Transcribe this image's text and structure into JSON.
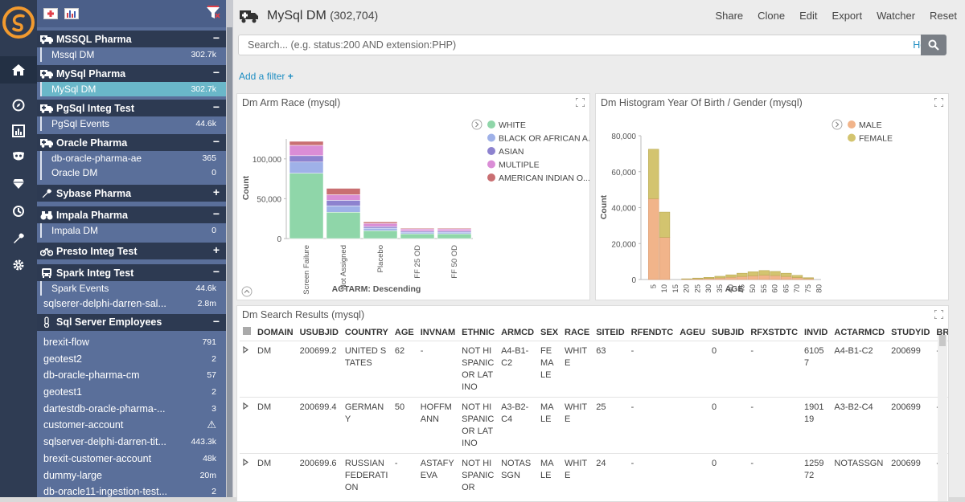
{
  "sidebar": {
    "groups": [
      {
        "label": "MSSQL Pharma",
        "toggle": "−",
        "icon": "truck-icon",
        "items": [
          {
            "label": "Mssql DM",
            "count": "302.7k"
          }
        ]
      },
      {
        "label": "MySql Pharma",
        "toggle": "−",
        "icon": "truck-icon",
        "items": [
          {
            "label": "MySql DM",
            "count": "302.7k",
            "selected": true
          }
        ]
      },
      {
        "label": "PgSql Integ Test",
        "toggle": "−",
        "icon": "truck-icon",
        "items": [
          {
            "label": "PgSql Events",
            "count": "44.6k"
          }
        ]
      },
      {
        "label": "Oracle Pharma",
        "toggle": "−",
        "icon": "truck-icon",
        "items": [
          {
            "label": "db-oracle-pharma-ae",
            "count": "365"
          },
          {
            "label": "Oracle DM",
            "count": "0"
          }
        ]
      },
      {
        "label": "Sybase Pharma",
        "toggle": "+",
        "icon": "wrench-icon",
        "items": []
      },
      {
        "label": "Impala Pharma",
        "toggle": "−",
        "icon": "binoculars-icon",
        "items": [
          {
            "label": "Impala DM",
            "count": "0"
          }
        ]
      },
      {
        "label": "Presto Integ Test",
        "toggle": "+",
        "icon": "bicycle-icon",
        "items": []
      },
      {
        "label": "Spark Integ Test",
        "toggle": "−",
        "icon": "bus-icon",
        "items": [
          {
            "label": "Spark Events",
            "count": "44.6k"
          }
        ]
      }
    ],
    "standalone": [
      {
        "label": "sqlserer-delphi-darren-sal...",
        "count": "2.8m"
      }
    ],
    "last_group": {
      "label": "Sql Server Employees",
      "toggle": "−",
      "icon": "thermometer-icon",
      "items": [
        {
          "label": "brexit-flow",
          "count": "791"
        },
        {
          "label": "geotest2",
          "count": "2"
        },
        {
          "label": "db-oracle-pharma-cm",
          "count": "57"
        },
        {
          "label": "geotest1",
          "count": "2"
        },
        {
          "label": "dartestdb-oracle-pharma-...",
          "count": "3"
        },
        {
          "label": "customer-account",
          "count": "⚠"
        },
        {
          "label": "sqlserver-delphi-darren-tit...",
          "count": "443.3k"
        },
        {
          "label": "brexit-customer-account",
          "count": "48k"
        },
        {
          "label": "dummy-large",
          "count": "20m"
        },
        {
          "label": "db-oracle11-ingestion-test...",
          "count": "2"
        }
      ]
    }
  },
  "header": {
    "title": "MySql DM",
    "count": "(302,704)",
    "menu": [
      "Share",
      "Clone",
      "Edit",
      "Export",
      "Watcher",
      "Reset"
    ]
  },
  "search": {
    "placeholder": "Search... (e.g. status:200 AND extension:PHP)",
    "help": "Help"
  },
  "add_filter": "Add a filter",
  "chart_data": [
    {
      "type": "bar",
      "title": "Dm Arm Race (mysql)",
      "xlabel": "ACTARM: Descending",
      "ylabel": "Count",
      "ylim": [
        0,
        125000
      ],
      "yticks": [
        "100,000",
        "50,000",
        "0"
      ],
      "categories": [
        "Screen Failure",
        "Not Assigned",
        "Placebo",
        "FF 25 OD",
        "FF 50 OD"
      ],
      "stacked": true,
      "series": [
        {
          "name": "WHITE",
          "color": "#8fd6a9",
          "values": [
            82000,
            33000,
            10000,
            6000,
            6000
          ]
        },
        {
          "name": "BLACK OR AFRICAN A...",
          "color": "#9fb1e8",
          "values": [
            14000,
            8000,
            3000,
            2000,
            2000
          ]
        },
        {
          "name": "ASIAN",
          "color": "#8d82cf",
          "values": [
            8000,
            7000,
            2000,
            1500,
            1500
          ]
        },
        {
          "name": "MULTIPLE",
          "color": "#da8dd6",
          "values": [
            13000,
            7000,
            4000,
            2500,
            2500
          ]
        },
        {
          "name": "AMERICAN INDIAN O...",
          "color": "#c96f72",
          "values": [
            5000,
            8000,
            2000,
            1000,
            1000
          ]
        }
      ]
    },
    {
      "type": "bar",
      "title": "Dm Histogram Year Of Birth / Gender (mysql)",
      "xlabel": "AGE",
      "ylabel": "Count",
      "ylim": [
        0,
        80000
      ],
      "yticks": [
        "80,000",
        "60,000",
        "40,000",
        "20,000",
        "0"
      ],
      "xticks": [
        "5",
        "10",
        "15",
        "20",
        "25",
        "30",
        "35",
        "40",
        "45",
        "50",
        "55",
        "60",
        "65",
        "70",
        "75",
        "80"
      ],
      "stacked": true,
      "x": [
        5,
        10,
        15,
        20,
        25,
        30,
        35,
        40,
        45,
        50,
        55,
        60,
        65,
        70,
        75
      ],
      "series": [
        {
          "name": "MALE",
          "color": "#f1b48a",
          "values": [
            45000,
            23500,
            0,
            200,
            400,
            600,
            900,
            1300,
            1700,
            2100,
            2400,
            2200,
            1700,
            1100,
            500
          ]
        },
        {
          "name": "FEMALE",
          "color": "#d3c46f",
          "values": [
            27500,
            14000,
            0,
            200,
            400,
            600,
            900,
            1300,
            1800,
            2200,
            2600,
            2300,
            1800,
            1200,
            500
          ]
        }
      ]
    }
  ],
  "results": {
    "title": "Dm Search Results (mysql)",
    "columns": [
      "DOMAIN",
      "USUBJID",
      "COUNTRY",
      "AGE",
      "INVNAM",
      "ETHNIC",
      "ARMCD",
      "SEX",
      "RACE",
      "SITEID",
      "RFENDTC",
      "AGEU",
      "SUBJID",
      "RFXSTDTC",
      "INVID",
      "ACTARMCD",
      "STUDYID",
      "BRTHDTC"
    ],
    "rows": [
      [
        "DM",
        "200699.2",
        "UNITED STATES",
        "62",
        "-",
        "NOT HISPANIC OR LATINO",
        "A4-B1-C2",
        "FEMALE",
        "WHITE",
        "63",
        "-",
        "",
        "0",
        "-",
        "61057",
        "A4-B1-C2",
        "200699",
        "-"
      ],
      [
        "DM",
        "200699.4",
        "GERMANY",
        "50",
        "HOFFMANN",
        "NOT HISPANIC OR LATINO",
        "A3-B2-C4",
        "MALE",
        "WHITE",
        "25",
        "-",
        "",
        "0",
        "-",
        "190119",
        "A3-B2-C4",
        "200699",
        "-"
      ],
      [
        "DM",
        "200699.6",
        "RUSSIAN FEDERATION",
        "-",
        "ASTAFYEVA",
        "NOT HISPANIC OR",
        "NOTASSGN",
        "MALE",
        "WHITE",
        "24",
        "-",
        "",
        "0",
        "-",
        "125972",
        "NOTASSGN",
        "200699",
        "-"
      ]
    ]
  }
}
